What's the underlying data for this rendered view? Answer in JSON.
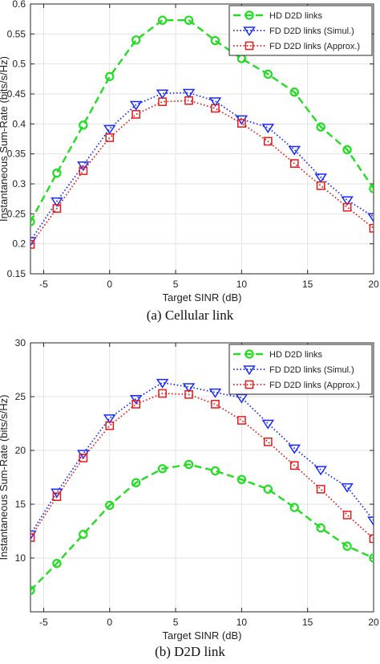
{
  "chart_data": [
    {
      "type": "line",
      "caption": "(a) Cellular link",
      "xlabel": "Target SINR (dB)",
      "ylabel": "Instantaneous Sum-Rate (bits/s/Hz)",
      "xlim": [
        -6,
        20
      ],
      "ylim": [
        0.15,
        0.6
      ],
      "xticks": [
        -5,
        0,
        5,
        10,
        15,
        20
      ],
      "xtick_labels": [
        "-5",
        "0",
        "5",
        "10",
        "15",
        "20"
      ],
      "yticks": [
        0.15,
        0.2,
        0.25,
        0.3,
        0.35,
        0.4,
        0.45,
        0.5,
        0.55,
        0.6
      ],
      "ytick_labels": [
        "0.15",
        "0.2",
        "0.25",
        "0.3",
        "0.35",
        "0.4",
        "0.45",
        "0.5",
        "0.55",
        "0.6"
      ],
      "grid": true,
      "legend_position": "top-right",
      "x": [
        -6,
        -4,
        -2,
        0,
        2,
        4,
        6,
        8,
        10,
        12,
        14,
        16,
        18,
        20
      ],
      "series": [
        {
          "name": "HD D2D links",
          "color": "#22dd22",
          "marker": "circle",
          "line": "dashed",
          "values": [
            0.237,
            0.318,
            0.398,
            0.479,
            0.54,
            0.573,
            0.573,
            0.539,
            0.509,
            0.483,
            0.453,
            0.395,
            0.357,
            0.292
          ]
        },
        {
          "name": "FD D2D links (Simul.)",
          "color": "#1a2bff",
          "marker": "triangle-down",
          "line": "dotted",
          "values": [
            0.205,
            0.271,
            0.331,
            0.392,
            0.432,
            0.451,
            0.452,
            0.438,
            0.408,
            0.394,
            0.357,
            0.311,
            0.273,
            0.245
          ]
        },
        {
          "name": "FD D2D links (Approx.)",
          "color": "#e81a1a",
          "marker": "square",
          "line": "dotted",
          "values": [
            0.199,
            0.259,
            0.322,
            0.377,
            0.416,
            0.437,
            0.439,
            0.426,
            0.401,
            0.371,
            0.334,
            0.297,
            0.261,
            0.226
          ]
        }
      ]
    },
    {
      "type": "line",
      "caption": "(b) D2D link",
      "xlabel": "Target SINR (dB)",
      "ylabel": "Instantaneous Sum-Rate (bits/s/Hz)",
      "xlim": [
        -6,
        20
      ],
      "ylim": [
        5,
        30
      ],
      "xticks": [
        -5,
        0,
        5,
        10,
        15,
        20
      ],
      "xtick_labels": [
        "-5",
        "0",
        "5",
        "10",
        "15",
        "20"
      ],
      "yticks": [
        10,
        15,
        20,
        25,
        30
      ],
      "ytick_labels": [
        "10",
        "15",
        "20",
        "25",
        "30"
      ],
      "grid": true,
      "legend_position": "top-right",
      "x": [
        -6,
        -4,
        -2,
        0,
        2,
        4,
        6,
        8,
        10,
        12,
        14,
        16,
        18,
        20
      ],
      "series": [
        {
          "name": "HD D2D links",
          "color": "#22dd22",
          "marker": "circle",
          "line": "dashed",
          "values": [
            7.0,
            9.5,
            12.2,
            14.9,
            17.0,
            18.3,
            18.7,
            18.1,
            17.3,
            16.4,
            14.7,
            12.8,
            11.1,
            10.0
          ]
        },
        {
          "name": "FD D2D links (Simul.)",
          "color": "#1a2bff",
          "marker": "triangle-down",
          "line": "dotted",
          "values": [
            12.2,
            16.1,
            19.7,
            23.0,
            24.8,
            26.3,
            25.9,
            25.4,
            24.9,
            22.5,
            20.2,
            18.2,
            16.6,
            13.5
          ]
        },
        {
          "name": "FD D2D links (Approx.)",
          "color": "#e81a1a",
          "marker": "square",
          "line": "dotted",
          "values": [
            11.9,
            15.7,
            19.3,
            22.3,
            24.3,
            25.3,
            25.2,
            24.3,
            22.8,
            20.8,
            18.6,
            16.4,
            14.0,
            11.8
          ]
        }
      ]
    }
  ]
}
